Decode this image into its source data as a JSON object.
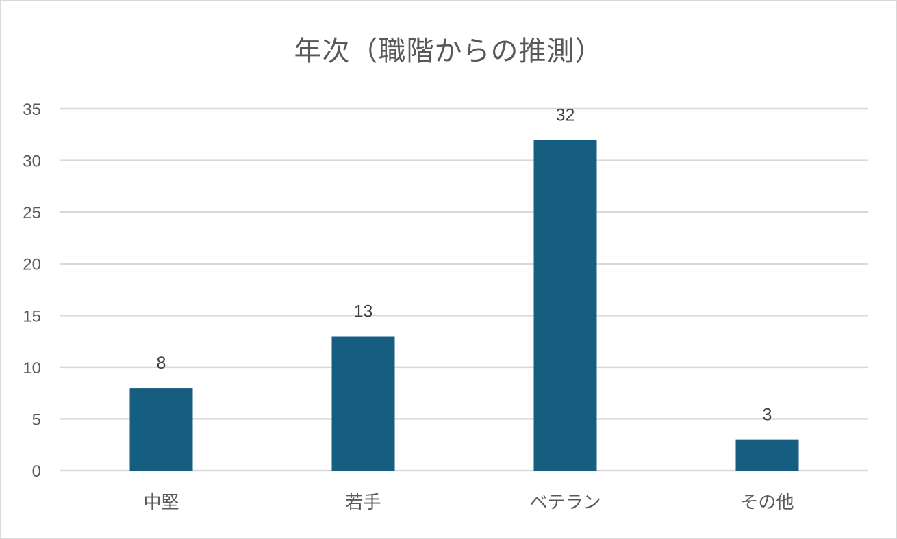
{
  "chart_data": {
    "type": "bar",
    "title": "年次（職階からの推測）",
    "xlabel": "",
    "ylabel": "",
    "categories": [
      "中堅",
      "若手",
      "ベテラン",
      "その他"
    ],
    "values": [
      8,
      13,
      32,
      3
    ],
    "data_labels": [
      "8",
      "13",
      "32",
      "3"
    ],
    "ylim": [
      0,
      35
    ],
    "yticks": [
      0,
      5,
      10,
      15,
      20,
      25,
      30,
      35
    ],
    "grid": true,
    "legend": "none",
    "bar_color": "#165e80",
    "gridline_color": "#d9d9d9",
    "text_color": "#595959"
  }
}
